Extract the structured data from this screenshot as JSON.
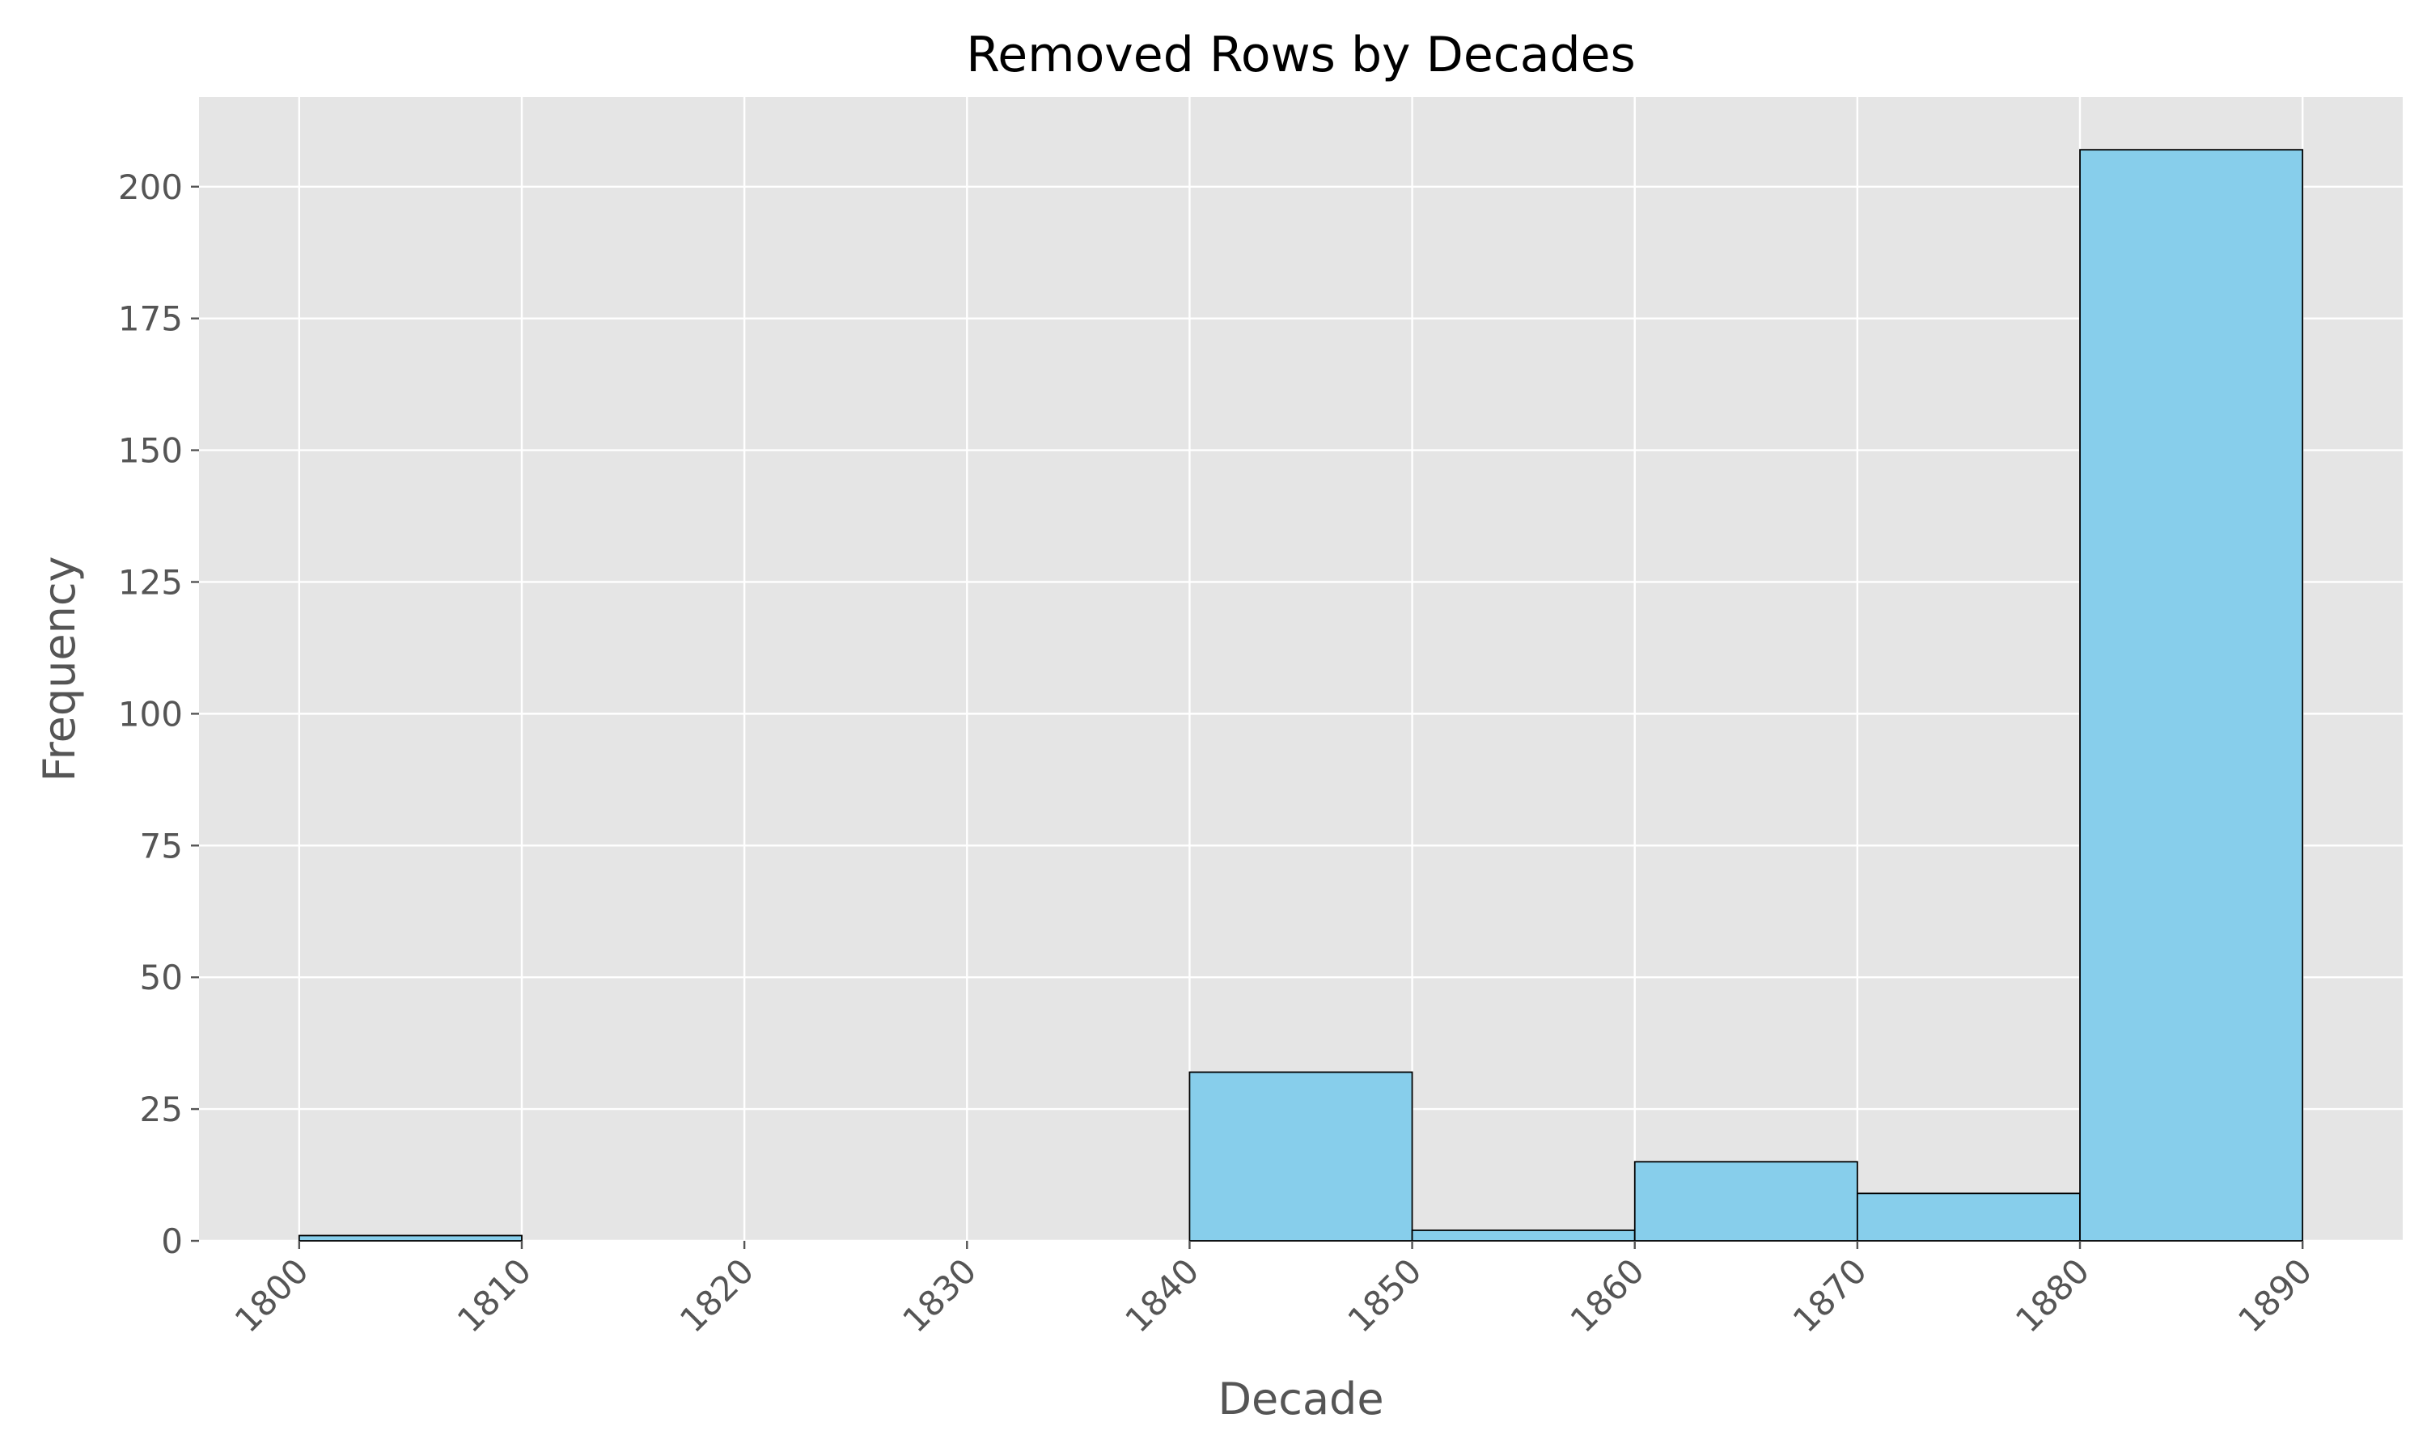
{
  "chart_data": {
    "type": "bar",
    "title": "Removed Rows by Decades",
    "xlabel": "Decade",
    "ylabel": "Frequency",
    "xlim": [
      1795.5,
      1894.5
    ],
    "ylim": [
      0,
      217
    ],
    "x_ticks": [
      1800,
      1810,
      1820,
      1830,
      1840,
      1850,
      1860,
      1870,
      1880,
      1890
    ],
    "y_ticks": [
      0,
      25,
      50,
      75,
      100,
      125,
      150,
      175,
      200
    ],
    "bins": [
      {
        "start": 1800,
        "end": 1810,
        "value": 1
      },
      {
        "start": 1810,
        "end": 1820,
        "value": 0
      },
      {
        "start": 1820,
        "end": 1830,
        "value": 0
      },
      {
        "start": 1830,
        "end": 1840,
        "value": 0
      },
      {
        "start": 1840,
        "end": 1850,
        "value": 32
      },
      {
        "start": 1850,
        "end": 1860,
        "value": 2
      },
      {
        "start": 1860,
        "end": 1870,
        "value": 15
      },
      {
        "start": 1870,
        "end": 1880,
        "value": 9
      },
      {
        "start": 1880,
        "end": 1890,
        "value": 207
      }
    ],
    "grid": true,
    "colors": {
      "bar_fill": "#87ceeb",
      "bar_edge": "#000000",
      "plot_background": "#e5e5e5",
      "grid": "#ffffff",
      "tick_text": "#555555",
      "title_text": "#000000"
    }
  }
}
